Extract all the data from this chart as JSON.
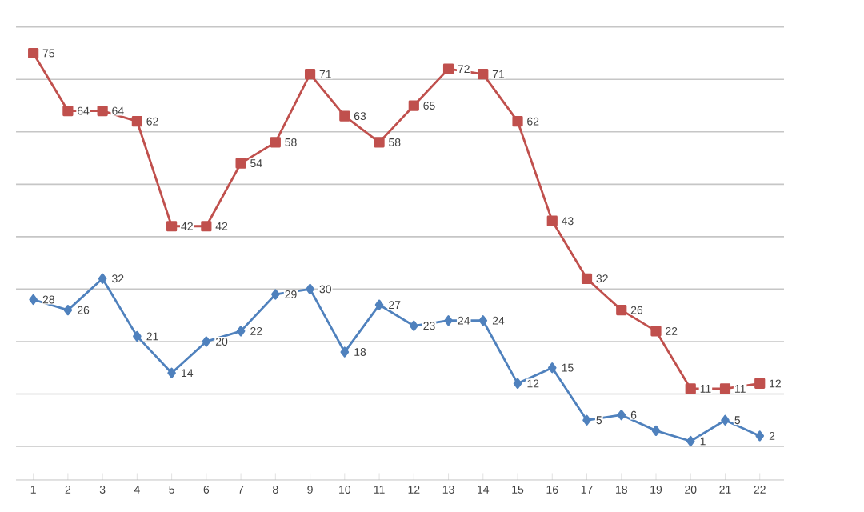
{
  "chart_data": {
    "type": "line",
    "categories": [
      "1",
      "2",
      "3",
      "4",
      "5",
      "6",
      "7",
      "8",
      "9",
      "10",
      "11",
      "12",
      "13",
      "14",
      "15",
      "16",
      "17",
      "18",
      "19",
      "20",
      "21",
      "22"
    ],
    "series": [
      {
        "color": "#4f81bd",
        "marker": "diamond",
        "values": [
          28,
          26,
          32,
          21,
          14,
          20,
          22,
          29,
          30,
          18,
          27,
          23,
          24,
          24,
          12,
          15,
          5,
          6,
          3,
          1,
          5,
          2
        ],
        "value_labels": [
          "28",
          "26",
          "32",
          "21",
          "14",
          "20",
          "22",
          "29",
          "30",
          "18",
          "27",
          "23",
          "24",
          "24",
          "12",
          "15",
          "5",
          "6",
          null,
          "1",
          "5",
          "2"
        ]
      },
      {
        "color": "#c0504d",
        "marker": "square",
        "values": [
          75,
          64,
          64,
          62,
          42,
          42,
          54,
          58,
          71,
          63,
          58,
          65,
          72,
          71,
          62,
          43,
          32,
          26,
          22,
          11,
          11,
          12
        ],
        "value_labels": [
          "75",
          "64",
          "64",
          "62",
          "42",
          "42",
          "54",
          "58",
          "71",
          "63",
          "58",
          "65",
          "72",
          "71",
          "62",
          "43",
          "32",
          "26",
          "22",
          "11",
          "11",
          "12"
        ]
      }
    ],
    "tick_labels": "x",
    "grid": "y"
  }
}
